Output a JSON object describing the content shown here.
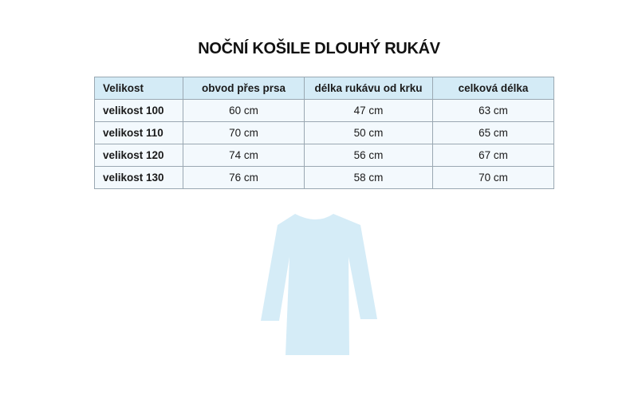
{
  "title": "NOČNÍ KOŠILE DLOUHÝ RUKÁV",
  "table": {
    "headers": [
      "Velikost",
      "obvod přes prsa",
      "délka rukávu od krku",
      "celková délka"
    ],
    "rows": [
      [
        "velikost 100",
        "60 cm",
        "47 cm",
        "63 cm"
      ],
      [
        "velikost 110",
        "70 cm",
        "50 cm",
        "65 cm"
      ],
      [
        "velikost 120",
        "74 cm",
        "56 cm",
        "67 cm"
      ],
      [
        "velikost 130",
        "76 cm",
        "58 cm",
        "70 cm"
      ]
    ]
  },
  "colors": {
    "header_bg": "#d4ebf6",
    "row_bg": "#f3f9fd",
    "shirt": "#d5ecf7"
  },
  "illustration_icon": "long-sleeve-nightshirt-icon"
}
